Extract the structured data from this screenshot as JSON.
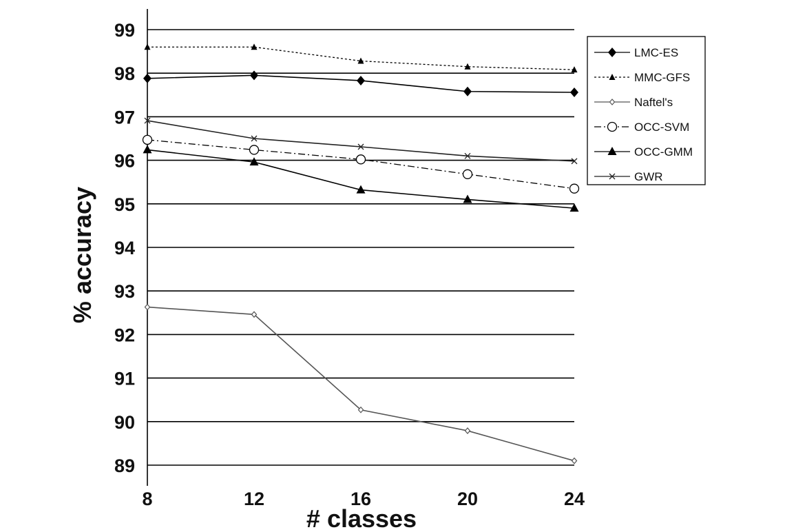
{
  "chart_data": {
    "type": "line",
    "xlabel": "# classes",
    "ylabel": "% accuracy",
    "x": [
      8,
      12,
      16,
      20,
      24
    ],
    "xlim": [
      8,
      24
    ],
    "ylim": [
      89,
      99
    ],
    "yticks": [
      89,
      90,
      91,
      92,
      93,
      94,
      95,
      96,
      97,
      98,
      99
    ],
    "grid": "horizontal",
    "legend_position": "right",
    "series": [
      {
        "name": "LMC-ES",
        "values": [
          97.88,
          97.95,
          97.83,
          97.58,
          97.56
        ],
        "marker": "diamond-filled",
        "line": "solid",
        "color": "#000000"
      },
      {
        "name": "MMC-GFS",
        "values": [
          98.6,
          98.6,
          98.28,
          98.15,
          98.08
        ],
        "marker": "triangle-filled-small",
        "line": "dotted",
        "color": "#000000"
      },
      {
        "name": "Naftel's",
        "values": [
          92.63,
          92.46,
          90.27,
          89.79,
          89.1
        ],
        "marker": "diamond-open",
        "line": "solid",
        "color": "#555555"
      },
      {
        "name": "OCC-SVM",
        "values": [
          96.47,
          96.24,
          96.02,
          95.68,
          95.35
        ],
        "marker": "circle-open",
        "line": "dashdot",
        "color": "#000000"
      },
      {
        "name": "OCC-GMM",
        "values": [
          96.24,
          95.96,
          95.32,
          95.1,
          94.9
        ],
        "marker": "triangle-filled",
        "line": "solid",
        "color": "#000000"
      },
      {
        "name": "GWR",
        "values": [
          96.91,
          96.5,
          96.31,
          96.1,
          95.98
        ],
        "marker": "x",
        "line": "solid",
        "color": "#222222"
      }
    ]
  }
}
